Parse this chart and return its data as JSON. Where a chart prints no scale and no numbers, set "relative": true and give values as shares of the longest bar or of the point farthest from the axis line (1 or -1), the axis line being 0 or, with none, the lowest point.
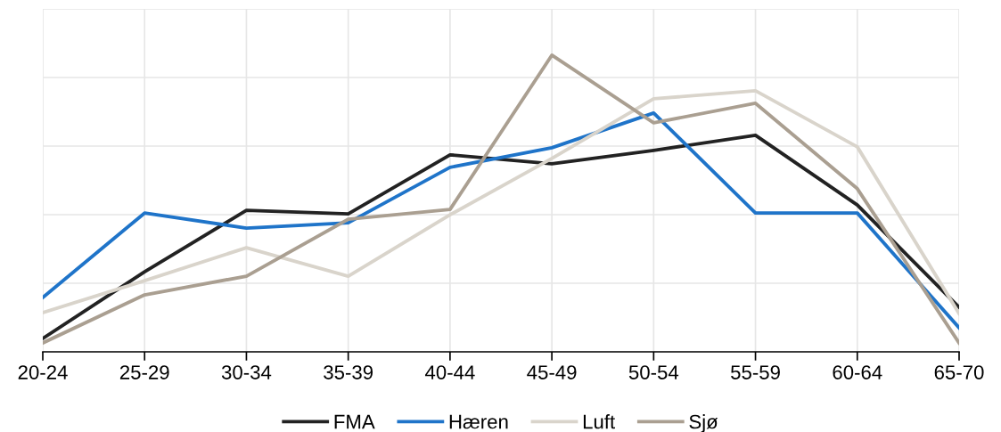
{
  "chart_data": {
    "type": "line",
    "relative": true,
    "grid": true,
    "legend": "bottom",
    "marker": "none",
    "line_style": "solid",
    "categories": [
      "20-24",
      "25-29",
      "30-34",
      "35-39",
      "40-44",
      "45-49",
      "50-54",
      "55-59",
      "60-64",
      "65-70"
    ],
    "series": [
      {
        "name": "FMA",
        "color": "#222222",
        "values": [
          0.045,
          0.27,
          0.477,
          0.465,
          0.664,
          0.634,
          0.679,
          0.73,
          0.495,
          0.15
        ]
      },
      {
        "name": "Hæren",
        "color": "#1f74c9",
        "values": [
          0.183,
          0.468,
          0.417,
          0.435,
          0.622,
          0.688,
          0.805,
          0.468,
          0.468,
          0.081
        ]
      },
      {
        "name": "Luft",
        "color": "#d9d4cb",
        "values": [
          0.132,
          0.24,
          0.351,
          0.255,
          0.462,
          0.652,
          0.853,
          0.88,
          0.691,
          0.129
        ]
      },
      {
        "name": "Sjø",
        "color": "#aa9f91",
        "values": [
          0.03,
          0.192,
          0.255,
          0.447,
          0.48,
          1,
          0.772,
          0.838,
          0.55,
          0.03
        ]
      }
    ]
  }
}
